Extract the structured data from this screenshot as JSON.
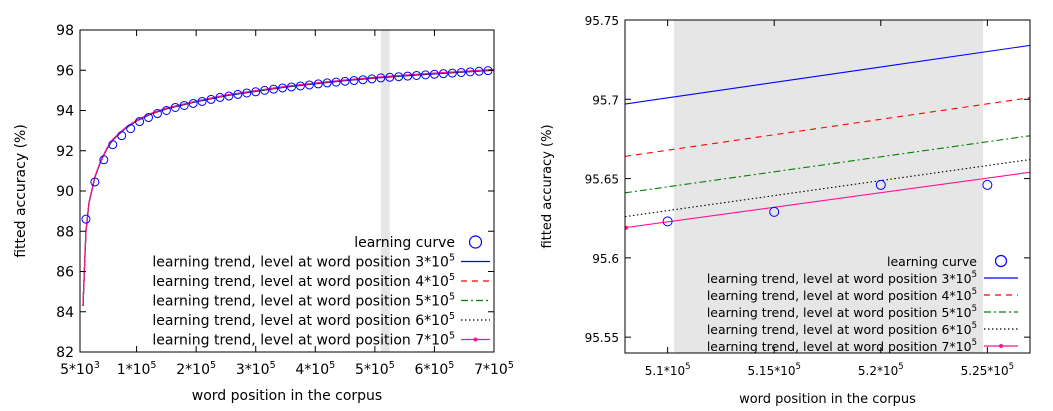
{
  "chart_data": [
    {
      "type": "line",
      "xlabel": "word position in the corpus",
      "ylabel": "fitted accuracy (%)",
      "xlim": [
        5000,
        700000
      ],
      "ylim": [
        82,
        98
      ],
      "x_ticks": [
        {
          "value": 5000,
          "base": "5*10",
          "exp": "3"
        },
        {
          "value": 100000,
          "base": "1*10",
          "exp": "5"
        },
        {
          "value": 200000,
          "base": "2*10",
          "exp": "5"
        },
        {
          "value": 300000,
          "base": "3*10",
          "exp": "5"
        },
        {
          "value": 400000,
          "base": "4*10",
          "exp": "5"
        },
        {
          "value": 500000,
          "base": "5*10",
          "exp": "5"
        },
        {
          "value": 600000,
          "base": "6*10",
          "exp": "5"
        },
        {
          "value": 700000,
          "base": "7*10",
          "exp": "5"
        }
      ],
      "y_ticks": [
        "82",
        "84",
        "86",
        "88",
        "90",
        "92",
        "94",
        "96",
        "98"
      ],
      "y_tick_values": [
        82,
        84,
        86,
        88,
        90,
        92,
        94,
        96,
        98
      ],
      "highlight_x_range": [
        510000,
        525000
      ],
      "learning_curve_points": {
        "x": [
          15000,
          30000,
          45000,
          60000,
          75000,
          90000,
          105000,
          120000,
          135000,
          150000,
          165000,
          180000,
          195000,
          210000,
          225000,
          240000,
          255000,
          270000,
          285000,
          300000,
          315000,
          330000,
          345000,
          360000,
          375000,
          390000,
          405000,
          420000,
          435000,
          450000,
          465000,
          480000,
          495000,
          510000,
          525000,
          540000,
          555000,
          570000,
          585000,
          600000,
          615000,
          630000,
          645000,
          660000,
          675000,
          690000
        ],
        "y": [
          88.6,
          90.45,
          91.55,
          92.3,
          92.75,
          93.1,
          93.45,
          93.65,
          93.85,
          94.0,
          94.15,
          94.25,
          94.35,
          94.45,
          94.55,
          94.65,
          94.72,
          94.8,
          94.87,
          94.93,
          95.0,
          95.06,
          95.12,
          95.17,
          95.22,
          95.27,
          95.32,
          95.37,
          95.41,
          95.45,
          95.49,
          95.53,
          95.57,
          95.62,
          95.65,
          95.68,
          95.71,
          95.74,
          95.77,
          95.8,
          95.83,
          95.86,
          95.89,
          95.92,
          95.95,
          95.98
        ]
      },
      "trend_curve": {
        "x": [
          10000,
          15000,
          20000,
          30000,
          40000,
          50000,
          60000,
          80000,
          100000,
          125000,
          150000,
          200000,
          250000,
          300000,
          350000,
          400000,
          450000,
          500000,
          550000,
          600000,
          650000,
          700000
        ],
        "y": [
          84.3,
          88.0,
          89.4,
          90.7,
          91.5,
          92.1,
          92.55,
          93.1,
          93.5,
          93.85,
          94.1,
          94.45,
          94.75,
          94.97,
          95.18,
          95.35,
          95.5,
          95.63,
          95.74,
          95.84,
          95.93,
          96.02
        ]
      },
      "legend": {
        "position": "bottom-right",
        "entries": [
          {
            "label": "learning curve",
            "exp": "",
            "color": "#0000ff",
            "style": "circle"
          },
          {
            "label": "learning trend, level at word position 3*10",
            "exp": "5",
            "color": "#0000ff",
            "style": "solid"
          },
          {
            "label": "learning trend, level at word position 4*10",
            "exp": "5",
            "color": "#ff0000",
            "style": "dashed"
          },
          {
            "label": "learning trend, level at word position 5*10",
            "exp": "5",
            "color": "#008000",
            "style": "dashdot"
          },
          {
            "label": "learning trend, level at word position 6*10",
            "exp": "5",
            "color": "#000000",
            "style": "dotted"
          },
          {
            "label": "learning trend, level at word position 7*10",
            "exp": "5",
            "color": "#ff1493",
            "style": "solid-dot"
          }
        ]
      }
    },
    {
      "type": "line",
      "xlabel": "word position in the corpus",
      "ylabel": "fitted accuracy (%)",
      "xlim": [
        508000,
        527000
      ],
      "ylim": [
        95.54,
        95.75
      ],
      "x_ticks": [
        {
          "value": 510000,
          "base": "5.1*10",
          "exp": "5"
        },
        {
          "value": 515000,
          "base": "5.15*10",
          "exp": "5"
        },
        {
          "value": 520000,
          "base": "5.2*10",
          "exp": "5"
        },
        {
          "value": 525000,
          "base": "5.25*10",
          "exp": "5"
        }
      ],
      "y_ticks": [
        "95.55",
        "95.6",
        "95.65",
        "95.7",
        "95.75"
      ],
      "y_tick_values": [
        95.55,
        95.6,
        95.65,
        95.7,
        95.75
      ],
      "highlight_x_range": [
        510300,
        524800
      ],
      "learning_curve_points": {
        "x": [
          510000,
          515000,
          520000,
          525000
        ],
        "y": [
          95.623,
          95.629,
          95.646,
          95.646
        ]
      },
      "series": [
        {
          "name": "learning trend, level at word position 3*10^5",
          "color": "#0000ff",
          "style": "solid",
          "x": [
            508000,
            527000
          ],
          "y": [
            95.697,
            95.734
          ]
        },
        {
          "name": "learning trend, level at word position 4*10^5",
          "color": "#ff0000",
          "style": "dashed",
          "x": [
            508000,
            527000
          ],
          "y": [
            95.664,
            95.701
          ]
        },
        {
          "name": "learning trend, level at word position 5*10^5",
          "color": "#008000",
          "style": "dashdot",
          "x": [
            508000,
            527000
          ],
          "y": [
            95.641,
            95.677
          ]
        },
        {
          "name": "learning trend, level at word position 6*10^5",
          "color": "#000000",
          "style": "dotted",
          "x": [
            508000,
            527000
          ],
          "y": [
            95.626,
            95.662
          ]
        },
        {
          "name": "learning trend, level at word position 7*10^5",
          "color": "#ff1493",
          "style": "solid-dot",
          "x": [
            508000,
            527000
          ],
          "y": [
            95.619,
            95.654
          ]
        }
      ],
      "legend": {
        "position": "bottom-right",
        "entries": [
          {
            "label": "learning curve",
            "exp": "",
            "color": "#0000ff",
            "style": "circle"
          },
          {
            "label": "learning trend, level at word position 3*10",
            "exp": "5",
            "color": "#0000ff",
            "style": "solid"
          },
          {
            "label": "learning trend, level at word position 4*10",
            "exp": "5",
            "color": "#ff0000",
            "style": "dashed"
          },
          {
            "label": "learning trend, level at word position 5*10",
            "exp": "5",
            "color": "#008000",
            "style": "dashdot"
          },
          {
            "label": "learning trend, level at word position 6*10",
            "exp": "5",
            "color": "#000000",
            "style": "dotted"
          },
          {
            "label": "learning trend, level at word position 7*10",
            "exp": "5",
            "color": "#ff1493",
            "style": "solid-dot"
          }
        ]
      }
    }
  ]
}
